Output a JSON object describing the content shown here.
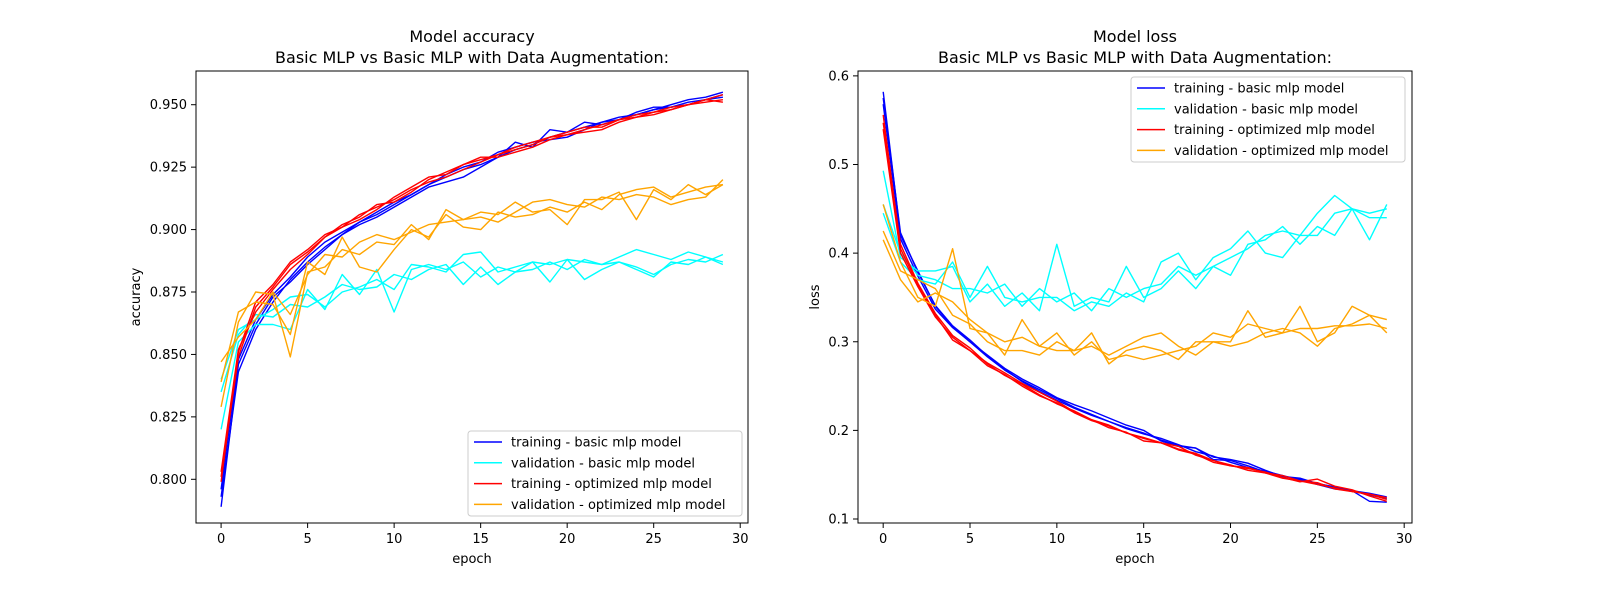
{
  "chart_data": [
    {
      "type": "line",
      "title": "Model accuracy",
      "subtitle": "Basic MLP vs Basic MLP with Data Augmentation:",
      "xlabel": "epoch",
      "ylabel": "accuracy",
      "xlim": [
        -1.45,
        30.45
      ],
      "ylim": [
        0.7825,
        0.9635
      ],
      "xticks": [
        0,
        5,
        10,
        15,
        20,
        25,
        30
      ],
      "xtick_labels": [
        "0",
        "5",
        "10",
        "15",
        "20",
        "25",
        "30"
      ],
      "yticks": [
        0.8,
        0.825,
        0.85,
        0.875,
        0.9,
        0.925,
        0.95
      ],
      "ytick_labels": [
        "0.800",
        "0.825",
        "0.850",
        "0.875",
        "0.900",
        "0.925",
        "0.950"
      ],
      "grid": false,
      "legend": {
        "position": "lower-right",
        "entries": [
          {
            "label": "training - basic mlp model",
            "color": "#0000ff"
          },
          {
            "label": "validation - basic mlp model",
            "color": "#00ffff"
          },
          {
            "label": "training - optimized mlp model",
            "color": "#ff0000"
          },
          {
            "label": "validation - optimized mlp model",
            "color": "#ffa500"
          }
        ]
      },
      "x": [
        0,
        1,
        2,
        3,
        4,
        5,
        6,
        7,
        8,
        9,
        10,
        11,
        12,
        13,
        14,
        15,
        16,
        17,
        18,
        19,
        20,
        21,
        22,
        23,
        24,
        25,
        26,
        27,
        28,
        29
      ],
      "series": [
        {
          "color": "#0000ff",
          "values": [
            0.789,
            0.846,
            0.862,
            0.873,
            0.879,
            0.886,
            0.892,
            0.898,
            0.902,
            0.905,
            0.909,
            0.913,
            0.917,
            0.919,
            0.921,
            0.925,
            0.929,
            0.935,
            0.933,
            0.94,
            0.939,
            0.943,
            0.942,
            0.944,
            0.946,
            0.948,
            0.95,
            0.952,
            0.953,
            0.955
          ]
        },
        {
          "color": "#0000ff",
          "values": [
            0.793,
            0.843,
            0.86,
            0.871,
            0.88,
            0.887,
            0.893,
            0.898,
            0.903,
            0.906,
            0.91,
            0.914,
            0.918,
            0.922,
            0.925,
            0.927,
            0.931,
            0.933,
            0.935,
            0.936,
            0.937,
            0.94,
            0.943,
            0.944,
            0.947,
            0.949,
            0.949,
            0.95,
            0.952,
            0.954
          ]
        },
        {
          "color": "#0000ff",
          "values": [
            0.796,
            0.848,
            0.864,
            0.874,
            0.881,
            0.889,
            0.895,
            0.899,
            0.903,
            0.907,
            0.911,
            0.914,
            0.918,
            0.921,
            0.924,
            0.926,
            0.929,
            0.932,
            0.934,
            0.937,
            0.939,
            0.941,
            0.943,
            0.945,
            0.946,
            0.948,
            0.949,
            0.951,
            0.952,
            0.953
          ]
        },
        {
          "color": "#00ffff",
          "values": [
            0.82,
            0.855,
            0.862,
            0.862,
            0.86,
            0.876,
            0.868,
            0.882,
            0.874,
            0.884,
            0.867,
            0.884,
            0.886,
            0.884,
            0.887,
            0.881,
            0.885,
            0.883,
            0.884,
            0.887,
            0.884,
            0.888,
            0.886,
            0.887,
            0.884,
            0.881,
            0.887,
            0.886,
            0.889,
            0.886
          ]
        },
        {
          "color": "#00ffff",
          "values": [
            0.835,
            0.858,
            0.866,
            0.865,
            0.87,
            0.869,
            0.873,
            0.878,
            0.876,
            0.877,
            0.882,
            0.88,
            0.884,
            0.886,
            0.878,
            0.885,
            0.878,
            0.883,
            0.887,
            0.879,
            0.888,
            0.88,
            0.884,
            0.887,
            0.885,
            0.882,
            0.886,
            0.888,
            0.887,
            0.89
          ]
        },
        {
          "color": "#00ffff",
          "values": [
            0.84,
            0.86,
            0.864,
            0.868,
            0.873,
            0.874,
            0.869,
            0.875,
            0.877,
            0.88,
            0.876,
            0.886,
            0.885,
            0.883,
            0.89,
            0.891,
            0.883,
            0.885,
            0.887,
            0.886,
            0.888,
            0.887,
            0.886,
            0.889,
            0.892,
            0.89,
            0.888,
            0.891,
            0.889,
            0.887
          ]
        },
        {
          "color": "#ff0000",
          "values": [
            0.801,
            0.849,
            0.869,
            0.877,
            0.886,
            0.891,
            0.897,
            0.902,
            0.905,
            0.91,
            0.911,
            0.915,
            0.92,
            0.923,
            0.926,
            0.928,
            0.93,
            0.932,
            0.934,
            0.937,
            0.939,
            0.941,
            0.941,
            0.944,
            0.945,
            0.947,
            0.949,
            0.95,
            0.952,
            0.954
          ]
        },
        {
          "color": "#ff0000",
          "values": [
            0.803,
            0.852,
            0.867,
            0.876,
            0.884,
            0.89,
            0.897,
            0.901,
            0.906,
            0.909,
            0.912,
            0.916,
            0.919,
            0.921,
            0.924,
            0.927,
            0.93,
            0.933,
            0.935,
            0.937,
            0.938,
            0.94,
            0.942,
            0.944,
            0.946,
            0.947,
            0.948,
            0.95,
            0.951,
            0.952
          ]
        },
        {
          "color": "#ff0000",
          "values": [
            0.799,
            0.851,
            0.871,
            0.878,
            0.887,
            0.892,
            0.898,
            0.901,
            0.904,
            0.908,
            0.913,
            0.917,
            0.921,
            0.922,
            0.926,
            0.929,
            0.929,
            0.931,
            0.933,
            0.936,
            0.938,
            0.939,
            0.94,
            0.943,
            0.945,
            0.946,
            0.948,
            0.95,
            0.952,
            0.951
          ]
        },
        {
          "color": "#ffa500",
          "values": [
            0.829,
            0.863,
            0.875,
            0.874,
            0.849,
            0.883,
            0.885,
            0.892,
            0.89,
            0.895,
            0.894,
            0.902,
            0.896,
            0.908,
            0.904,
            0.907,
            0.906,
            0.911,
            0.907,
            0.908,
            0.902,
            0.912,
            0.912,
            0.915,
            0.904,
            0.916,
            0.912,
            0.918,
            0.914,
            0.918
          ]
        },
        {
          "color": "#ffa500",
          "values": [
            0.839,
            0.867,
            0.871,
            0.87,
            0.858,
            0.887,
            0.882,
            0.897,
            0.885,
            0.883,
            0.892,
            0.9,
            0.897,
            0.906,
            0.901,
            0.9,
            0.907,
            0.905,
            0.906,
            0.909,
            0.907,
            0.911,
            0.908,
            0.914,
            0.916,
            0.917,
            0.913,
            0.915,
            0.917,
            0.918
          ]
        },
        {
          "color": "#ffa500",
          "values": [
            0.847,
            0.857,
            0.864,
            0.875,
            0.866,
            0.882,
            0.89,
            0.889,
            0.895,
            0.898,
            0.896,
            0.899,
            0.902,
            0.903,
            0.904,
            0.905,
            0.903,
            0.907,
            0.911,
            0.912,
            0.91,
            0.909,
            0.913,
            0.912,
            0.914,
            0.913,
            0.91,
            0.912,
            0.913,
            0.92
          ]
        }
      ]
    },
    {
      "type": "line",
      "title": "Model loss",
      "subtitle": "Basic MLP vs Basic MLP with Data Augmentation:",
      "xlabel": "epoch",
      "ylabel": "loss",
      "xlim": [
        -1.45,
        30.45
      ],
      "ylim": [
        0.0955,
        0.6055
      ],
      "xticks": [
        0,
        5,
        10,
        15,
        20,
        25,
        30
      ],
      "xtick_labels": [
        "0",
        "5",
        "10",
        "15",
        "20",
        "25",
        "30"
      ],
      "yticks": [
        0.1,
        0.2,
        0.3,
        0.4,
        0.5,
        0.6
      ],
      "ytick_labels": [
        "0.1",
        "0.2",
        "0.3",
        "0.4",
        "0.5",
        "0.6"
      ],
      "grid": false,
      "legend": {
        "position": "upper-right",
        "entries": [
          {
            "label": "training - basic mlp model",
            "color": "#0000ff"
          },
          {
            "label": "validation - basic mlp model",
            "color": "#00ffff"
          },
          {
            "label": "training - optimized mlp model",
            "color": "#ff0000"
          },
          {
            "label": "validation - optimized mlp model",
            "color": "#ffa500"
          }
        ]
      },
      "x": [
        0,
        1,
        2,
        3,
        4,
        5,
        6,
        7,
        8,
        9,
        10,
        11,
        12,
        13,
        14,
        15,
        16,
        17,
        18,
        19,
        20,
        21,
        22,
        23,
        24,
        25,
        26,
        27,
        28,
        29
      ],
      "series": [
        {
          "color": "#0000ff",
          "values": [
            0.582,
            0.42,
            0.38,
            0.34,
            0.317,
            0.3,
            0.283,
            0.268,
            0.256,
            0.246,
            0.236,
            0.226,
            0.218,
            0.21,
            0.203,
            0.197,
            0.189,
            0.183,
            0.18,
            0.167,
            0.166,
            0.16,
            0.153,
            0.148,
            0.145,
            0.139,
            0.134,
            0.132,
            0.129,
            0.125
          ]
        },
        {
          "color": "#0000ff",
          "values": [
            0.568,
            0.416,
            0.374,
            0.337,
            0.316,
            0.3,
            0.285,
            0.27,
            0.258,
            0.248,
            0.237,
            0.229,
            0.222,
            0.214,
            0.206,
            0.2,
            0.188,
            0.182,
            0.18,
            0.17,
            0.167,
            0.163,
            0.155,
            0.148,
            0.146,
            0.14,
            0.136,
            0.132,
            0.12,
            0.119
          ]
        },
        {
          "color": "#0000ff",
          "values": [
            0.575,
            0.423,
            0.378,
            0.341,
            0.318,
            0.302,
            0.284,
            0.269,
            0.255,
            0.244,
            0.234,
            0.225,
            0.217,
            0.21,
            0.202,
            0.196,
            0.191,
            0.184,
            0.176,
            0.171,
            0.164,
            0.158,
            0.154,
            0.149,
            0.144,
            0.14,
            0.136,
            0.132,
            0.127,
            0.123
          ]
        },
        {
          "color": "#00ffff",
          "values": [
            0.493,
            0.395,
            0.38,
            0.38,
            0.385,
            0.345,
            0.365,
            0.34,
            0.355,
            0.335,
            0.41,
            0.34,
            0.35,
            0.345,
            0.385,
            0.35,
            0.36,
            0.38,
            0.36,
            0.385,
            0.375,
            0.41,
            0.415,
            0.43,
            0.41,
            0.43,
            0.42,
            0.45,
            0.415,
            0.455
          ]
        },
        {
          "color": "#00ffff",
          "values": [
            0.455,
            0.4,
            0.375,
            0.37,
            0.36,
            0.36,
            0.355,
            0.365,
            0.34,
            0.36,
            0.345,
            0.355,
            0.335,
            0.36,
            0.35,
            0.36,
            0.365,
            0.385,
            0.375,
            0.385,
            0.395,
            0.405,
            0.42,
            0.425,
            0.42,
            0.42,
            0.445,
            0.45,
            0.44,
            0.44
          ]
        },
        {
          "color": "#00ffff",
          "values": [
            0.445,
            0.39,
            0.37,
            0.365,
            0.39,
            0.35,
            0.385,
            0.35,
            0.345,
            0.35,
            0.35,
            0.335,
            0.345,
            0.34,
            0.355,
            0.345,
            0.39,
            0.4,
            0.37,
            0.395,
            0.405,
            0.425,
            0.4,
            0.395,
            0.42,
            0.445,
            0.465,
            0.45,
            0.445,
            0.45
          ]
        },
        {
          "color": "#ff0000",
          "values": [
            0.547,
            0.41,
            0.366,
            0.332,
            0.307,
            0.293,
            0.275,
            0.262,
            0.252,
            0.24,
            0.23,
            0.222,
            0.212,
            0.206,
            0.197,
            0.192,
            0.186,
            0.182,
            0.172,
            0.166,
            0.16,
            0.158,
            0.152,
            0.149,
            0.143,
            0.141,
            0.134,
            0.131,
            0.128,
            0.122
          ]
        },
        {
          "color": "#ff0000",
          "values": [
            0.54,
            0.4,
            0.362,
            0.328,
            0.305,
            0.29,
            0.276,
            0.265,
            0.253,
            0.243,
            0.233,
            0.221,
            0.212,
            0.203,
            0.198,
            0.188,
            0.186,
            0.178,
            0.173,
            0.164,
            0.16,
            0.157,
            0.153,
            0.147,
            0.142,
            0.145,
            0.137,
            0.133,
            0.126,
            0.12
          ]
        },
        {
          "color": "#ff0000",
          "values": [
            0.556,
            0.405,
            0.364,
            0.33,
            0.302,
            0.29,
            0.273,
            0.263,
            0.25,
            0.239,
            0.231,
            0.22,
            0.211,
            0.205,
            0.197,
            0.191,
            0.186,
            0.179,
            0.174,
            0.166,
            0.161,
            0.155,
            0.152,
            0.146,
            0.143,
            0.139,
            0.135,
            0.131,
            0.128,
            0.124
          ]
        },
        {
          "color": "#ffa500",
          "values": [
            0.455,
            0.39,
            0.35,
            0.34,
            0.405,
            0.315,
            0.31,
            0.285,
            0.325,
            0.295,
            0.29,
            0.29,
            0.31,
            0.275,
            0.29,
            0.295,
            0.29,
            0.28,
            0.3,
            0.3,
            0.3,
            0.335,
            0.305,
            0.31,
            0.34,
            0.3,
            0.31,
            0.34,
            0.33,
            0.325
          ]
        },
        {
          "color": "#ffa500",
          "values": [
            0.425,
            0.38,
            0.37,
            0.36,
            0.33,
            0.32,
            0.3,
            0.29,
            0.29,
            0.285,
            0.3,
            0.29,
            0.295,
            0.285,
            0.295,
            0.305,
            0.31,
            0.295,
            0.285,
            0.3,
            0.295,
            0.3,
            0.31,
            0.315,
            0.31,
            0.295,
            0.315,
            0.32,
            0.33,
            0.31
          ]
        },
        {
          "color": "#ffa500",
          "values": [
            0.415,
            0.37,
            0.345,
            0.355,
            0.345,
            0.325,
            0.31,
            0.3,
            0.305,
            0.295,
            0.31,
            0.285,
            0.3,
            0.28,
            0.285,
            0.28,
            0.285,
            0.29,
            0.295,
            0.31,
            0.305,
            0.32,
            0.315,
            0.31,
            0.315,
            0.315,
            0.318,
            0.318,
            0.32,
            0.315
          ]
        }
      ]
    }
  ]
}
